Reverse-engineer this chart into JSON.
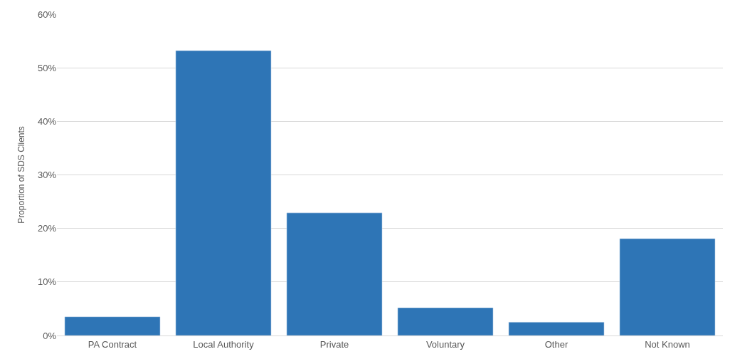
{
  "chart_data": {
    "type": "bar",
    "ylabel": "Proportion of SDS Clients",
    "categories": [
      "PA Contract",
      "Local Authority",
      "Private",
      "Voluntary",
      "Other",
      "Not Known"
    ],
    "values": [
      3.5,
      53.2,
      22.9,
      5.2,
      2.5,
      18.1
    ],
    "color": "#2e75b6",
    "ylim": [
      0,
      60
    ],
    "yticks": [
      {
        "value": 0,
        "label": "0%"
      },
      {
        "value": 10,
        "label": "10%"
      },
      {
        "value": 20,
        "label": "20%"
      },
      {
        "value": 30,
        "label": "30%"
      },
      {
        "value": 40,
        "label": "40%"
      },
      {
        "value": 50,
        "label": "50%"
      },
      {
        "value": 60,
        "label": "60%"
      }
    ],
    "grid": "y"
  }
}
